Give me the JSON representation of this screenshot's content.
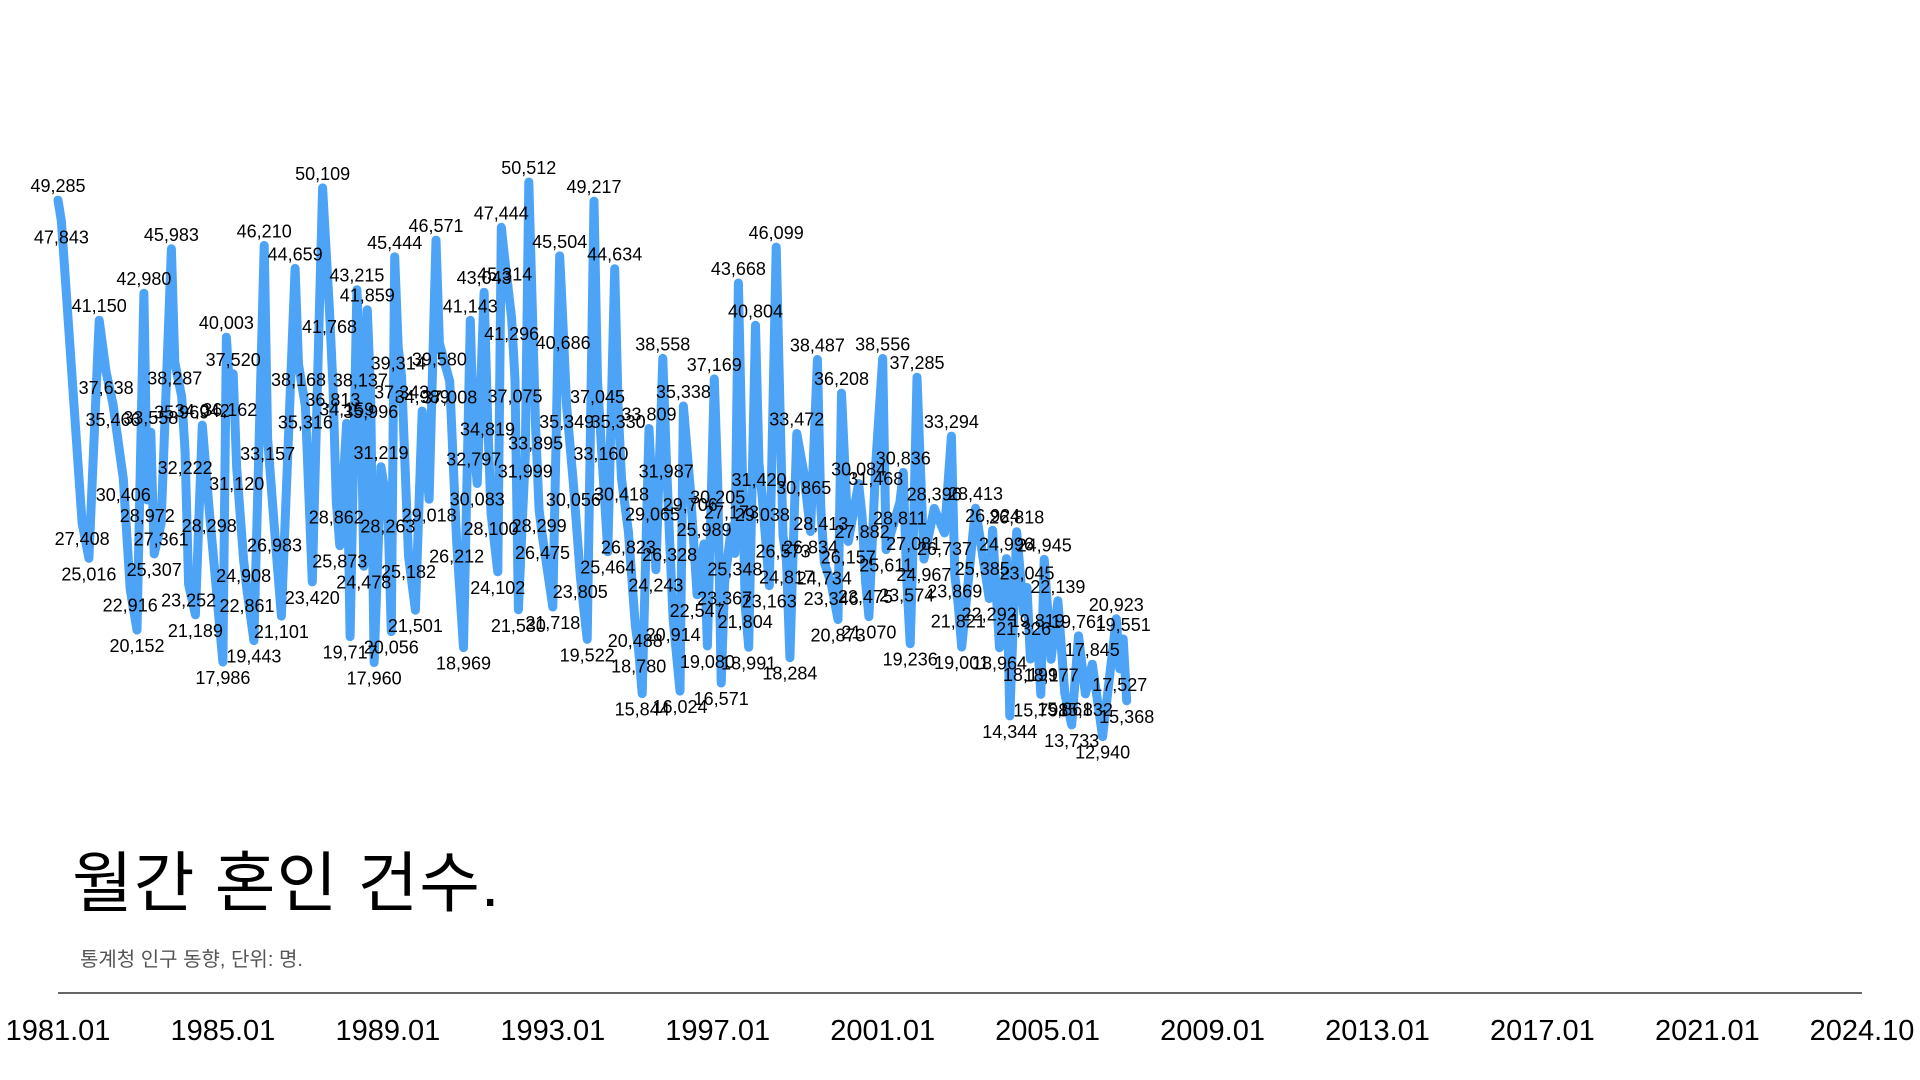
{
  "title": "월간 혼인 건수.",
  "subtitle": "통계청 인구 동향, 단위: 명.",
  "colors": {
    "line": "#4DA3F5",
    "axis": "#333333",
    "text": "#000000",
    "subtitle": "#555555"
  },
  "chart_data": {
    "type": "line",
    "title": "월간 혼인 건수.",
    "subtitle": "통계청 인구 동향, 단위: 명.",
    "x_range": [
      "1981.01",
      "2024.10"
    ],
    "ylim": [
      10000,
      52000
    ],
    "grid": false,
    "legend": "none",
    "x_ticks": [
      "1981.01",
      "1985.01",
      "1989.01",
      "1993.01",
      "1997.01",
      "2001.01",
      "2005.01",
      "2009.01",
      "2013.01",
      "2017.01",
      "2021.01",
      "2024.10"
    ],
    "data_labels": [
      {
        "date": "1981.01",
        "value": 49285
      },
      {
        "date": "1981.02",
        "value": 47843
      },
      {
        "date": "1981.08",
        "value": 27408
      },
      {
        "date": "1981.10",
        "value": 25016
      },
      {
        "date": "1982.01",
        "value": 41150
      },
      {
        "date": "1982.03",
        "value": 37638
      },
      {
        "date": "1982.05",
        "value": 35466
      },
      {
        "date": "1982.08",
        "value": 30406
      },
      {
        "date": "1982.10",
        "value": 22916
      },
      {
        "date": "1982.12",
        "value": 20152
      },
      {
        "date": "1983.02",
        "value": 42980
      },
      {
        "date": "1983.03",
        "value": 28972
      },
      {
        "date": "1983.04",
        "value": 33558
      },
      {
        "date": "1983.05",
        "value": 25307
      },
      {
        "date": "1983.07",
        "value": 27361
      },
      {
        "date": "1983.10",
        "value": 45983
      },
      {
        "date": "1983.11",
        "value": 38287
      },
      {
        "date": "1984.01",
        "value": 35969
      },
      {
        "date": "1984.02",
        "value": 32222
      },
      {
        "date": "1984.03",
        "value": 23252
      },
      {
        "date": "1984.05",
        "value": 21189
      },
      {
        "date": "1984.07",
        "value": 34042
      },
      {
        "date": "1984.09",
        "value": 28298
      },
      {
        "date": "1985.01",
        "value": 17986
      },
      {
        "date": "1985.02",
        "value": 40003
      },
      {
        "date": "1985.03",
        "value": 36162
      },
      {
        "date": "1985.04",
        "value": 37520
      },
      {
        "date": "1985.05",
        "value": 31120
      },
      {
        "date": "1985.07",
        "value": 24908
      },
      {
        "date": "1985.08",
        "value": 22861
      },
      {
        "date": "1985.10",
        "value": 19443
      },
      {
        "date": "1986.01",
        "value": 46210
      },
      {
        "date": "1986.02",
        "value": 33157
      },
      {
        "date": "1986.04",
        "value": 26983
      },
      {
        "date": "1986.06",
        "value": 21101
      },
      {
        "date": "1986.10",
        "value": 44659
      },
      {
        "date": "1986.11",
        "value": 38168
      },
      {
        "date": "1987.01",
        "value": 35316
      },
      {
        "date": "1987.03",
        "value": 23420
      },
      {
        "date": "1987.06",
        "value": 50109
      },
      {
        "date": "1987.08",
        "value": 41768
      },
      {
        "date": "1987.09",
        "value": 36813
      },
      {
        "date": "1987.10",
        "value": 28862
      },
      {
        "date": "1987.11",
        "value": 25873
      },
      {
        "date": "1988.01",
        "value": 34159
      },
      {
        "date": "1988.02",
        "value": 19717
      },
      {
        "date": "1988.04",
        "value": 43215
      },
      {
        "date": "1988.05",
        "value": 38137
      },
      {
        "date": "1988.06",
        "value": 24478
      },
      {
        "date": "1988.07",
        "value": 41859
      },
      {
        "date": "1988.08",
        "value": 35996
      },
      {
        "date": "1988.09",
        "value": 17960
      },
      {
        "date": "1988.11",
        "value": 31219
      },
      {
        "date": "1989.01",
        "value": 28263
      },
      {
        "date": "1989.02",
        "value": 20056
      },
      {
        "date": "1989.03",
        "value": 45444
      },
      {
        "date": "1989.04",
        "value": 39314
      },
      {
        "date": "1989.05",
        "value": 37343
      },
      {
        "date": "1989.07",
        "value": 25182
      },
      {
        "date": "1989.09",
        "value": 21501
      },
      {
        "date": "1989.11",
        "value": 34989
      },
      {
        "date": "1990.01",
        "value": 29018
      },
      {
        "date": "1990.03",
        "value": 46571
      },
      {
        "date": "1990.04",
        "value": 39580
      },
      {
        "date": "1990.07",
        "value": 37008
      },
      {
        "date": "1990.09",
        "value": 26212
      },
      {
        "date": "1990.11",
        "value": 18969
      },
      {
        "date": "1991.01",
        "value": 41143
      },
      {
        "date": "1991.02",
        "value": 32797
      },
      {
        "date": "1991.03",
        "value": 30083
      },
      {
        "date": "1991.05",
        "value": 43043
      },
      {
        "date": "1991.06",
        "value": 34819
      },
      {
        "date": "1991.07",
        "value": 28100
      },
      {
        "date": "1991.09",
        "value": 24102
      },
      {
        "date": "1991.10",
        "value": 47444
      },
      {
        "date": "1991.11",
        "value": 45314
      },
      {
        "date": "1992.01",
        "value": 41296
      },
      {
        "date": "1992.02",
        "value": 37075
      },
      {
        "date": "1992.03",
        "value": 21530
      },
      {
        "date": "1992.05",
        "value": 31999
      },
      {
        "date": "1992.06",
        "value": 50512
      },
      {
        "date": "1992.08",
        "value": 33895
      },
      {
        "date": "1992.09",
        "value": 28299
      },
      {
        "date": "1992.10",
        "value": 26475
      },
      {
        "date": "1993.01",
        "value": 21718
      },
      {
        "date": "1993.03",
        "value": 45504
      },
      {
        "date": "1993.04",
        "value": 40686
      },
      {
        "date": "1993.05",
        "value": 35349
      },
      {
        "date": "1993.07",
        "value": 30056
      },
      {
        "date": "1993.09",
        "value": 23805
      },
      {
        "date": "1993.11",
        "value": 19522
      },
      {
        "date": "1994.01",
        "value": 49217
      },
      {
        "date": "1994.02",
        "value": 37045
      },
      {
        "date": "1994.03",
        "value": 33160
      },
      {
        "date": "1994.05",
        "value": 25464
      },
      {
        "date": "1994.07",
        "value": 44634
      },
      {
        "date": "1994.08",
        "value": 35330
      },
      {
        "date": "1994.09",
        "value": 30418
      },
      {
        "date": "1994.11",
        "value": 26823
      },
      {
        "date": "1995.01",
        "value": 20488
      },
      {
        "date": "1995.02",
        "value": 18780
      },
      {
        "date": "1995.03",
        "value": 15844
      },
      {
        "date": "1995.05",
        "value": 33809
      },
      {
        "date": "1995.06",
        "value": 29065
      },
      {
        "date": "1995.07",
        "value": 24243
      },
      {
        "date": "1995.09",
        "value": 38558
      },
      {
        "date": "1995.10",
        "value": 31987
      },
      {
        "date": "1995.11",
        "value": 26328
      },
      {
        "date": "1995.12",
        "value": 20914
      },
      {
        "date": "1996.02",
        "value": 16024
      },
      {
        "date": "1996.03",
        "value": 35338
      },
      {
        "date": "1996.05",
        "value": 29706
      },
      {
        "date": "1996.07",
        "value": 22547
      },
      {
        "date": "1996.09",
        "value": 25989
      },
      {
        "date": "1996.10",
        "value": 19080
      },
      {
        "date": "1996.12",
        "value": 37169
      },
      {
        "date": "1997.01",
        "value": 30205
      },
      {
        "date": "1997.02",
        "value": 16571
      },
      {
        "date": "1997.03",
        "value": 23367
      },
      {
        "date": "1997.05",
        "value": 27173
      },
      {
        "date": "1997.06",
        "value": 25348
      },
      {
        "date": "1997.07",
        "value": 43668
      },
      {
        "date": "1997.09",
        "value": 21804
      },
      {
        "date": "1997.10",
        "value": 18991
      },
      {
        "date": "1997.12",
        "value": 40804
      },
      {
        "date": "1998.01",
        "value": 31420
      },
      {
        "date": "1998.02",
        "value": 29038
      },
      {
        "date": "1998.04",
        "value": 23163
      },
      {
        "date": "1998.06",
        "value": 46099
      },
      {
        "date": "1998.08",
        "value": 26573
      },
      {
        "date": "1998.09",
        "value": 24817
      },
      {
        "date": "1998.10",
        "value": 18284
      },
      {
        "date": "1998.12",
        "value": 33472
      },
      {
        "date": "1999.02",
        "value": 30865
      },
      {
        "date": "1999.04",
        "value": 26834
      },
      {
        "date": "1999.06",
        "value": 38487
      },
      {
        "date": "1999.07",
        "value": 28413
      },
      {
        "date": "1999.08",
        "value": 24734
      },
      {
        "date": "1999.10",
        "value": 23346
      },
      {
        "date": "1999.12",
        "value": 20873
      },
      {
        "date": "2000.01",
        "value": 36208
      },
      {
        "date": "2000.03",
        "value": 26157
      },
      {
        "date": "2000.06",
        "value": 30084
      },
      {
        "date": "2000.07",
        "value": 27882
      },
      {
        "date": "2000.08",
        "value": 23475
      },
      {
        "date": "2000.09",
        "value": 21070
      },
      {
        "date": "2000.11",
        "value": 31468
      },
      {
        "date": "2001.01",
        "value": 38556
      },
      {
        "date": "2001.02",
        "value": 25611
      },
      {
        "date": "2001.06",
        "value": 28811
      },
      {
        "date": "2001.07",
        "value": 30836
      },
      {
        "date": "2001.08",
        "value": 23574
      },
      {
        "date": "2001.09",
        "value": 19236
      },
      {
        "date": "2001.10",
        "value": 27081
      },
      {
        "date": "2001.11",
        "value": 37285
      },
      {
        "date": "2002.01",
        "value": 24967
      },
      {
        "date": "2002.04",
        "value": 28396
      },
      {
        "date": "2002.07",
        "value": 26737
      },
      {
        "date": "2002.09",
        "value": 33294
      },
      {
        "date": "2002.10",
        "value": 23869
      },
      {
        "date": "2002.11",
        "value": 21821
      },
      {
        "date": "2002.12",
        "value": 19001
      },
      {
        "date": "2003.04",
        "value": 28413
      },
      {
        "date": "2003.06",
        "value": 25385
      },
      {
        "date": "2003.08",
        "value": 22292
      },
      {
        "date": "2003.09",
        "value": 26924
      },
      {
        "date": "2003.11",
        "value": 18964
      },
      {
        "date": "2004.01",
        "value": 24996
      },
      {
        "date": "2004.02",
        "value": 14344
      },
      {
        "date": "2004.04",
        "value": 26818
      },
      {
        "date": "2004.06",
        "value": 21326
      },
      {
        "date": "2004.07",
        "value": 23045
      },
      {
        "date": "2004.08",
        "value": 18199
      },
      {
        "date": "2004.10",
        "value": 19819
      },
      {
        "date": "2004.11",
        "value": 15798
      },
      {
        "date": "2004.12",
        "value": 24945
      },
      {
        "date": "2005.02",
        "value": 18177
      },
      {
        "date": "2005.04",
        "value": 22139
      },
      {
        "date": "2005.06",
        "value": 15861
      },
      {
        "date": "2005.08",
        "value": 13733
      },
      {
        "date": "2005.10",
        "value": 19761
      },
      {
        "date": "2005.12",
        "value": 15832
      },
      {
        "date": "2006.02",
        "value": 17845
      },
      {
        "date": "2006.05",
        "value": 12940
      },
      {
        "date": "2006.09",
        "value": 20923
      },
      {
        "date": "2006.10",
        "value": 17527
      },
      {
        "date": "2006.11",
        "value": 19551
      },
      {
        "date": "2006.12",
        "value": 15368
      }
    ]
  }
}
